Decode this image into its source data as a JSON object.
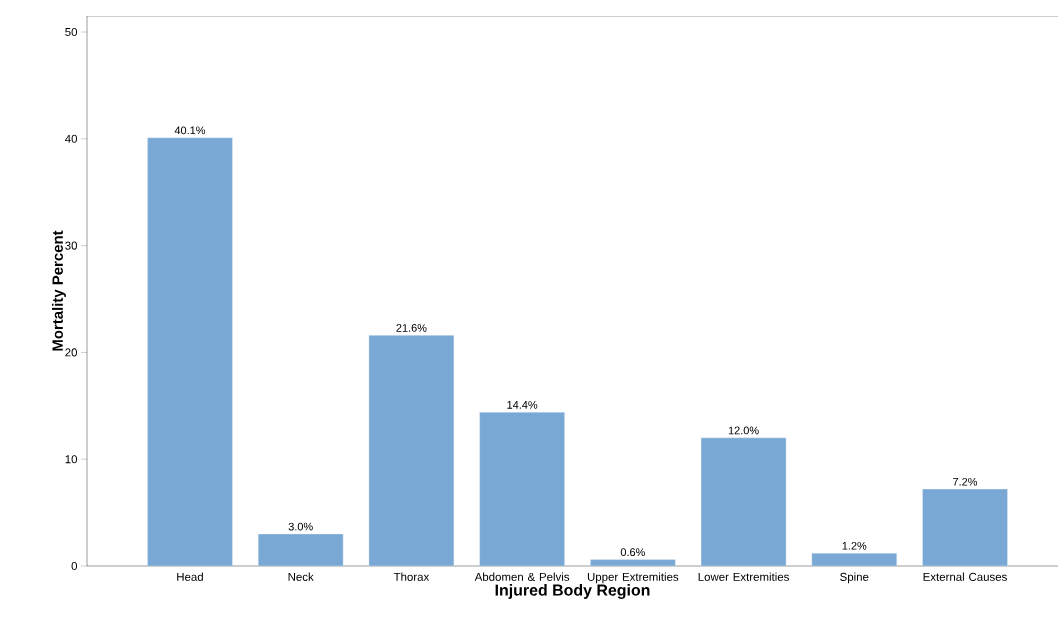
{
  "chart_data": {
    "type": "bar",
    "xlabel": "Injured Body Region",
    "ylabel": "Mortality Percent",
    "categories": [
      "Head",
      "Neck",
      "Thorax",
      "Abdomen & Pelvis",
      "Upper Extremities",
      "Lower Extremities",
      "Spine",
      "External Causes"
    ],
    "values": [
      40.1,
      3.0,
      21.6,
      14.4,
      0.6,
      12.0,
      1.2,
      7.2
    ],
    "value_labels": [
      "40.1%",
      "3.0%",
      "21.6%",
      "14.4%",
      "0.6%",
      "12.0%",
      "1.2%",
      "7.2%"
    ],
    "color": "#7aa8d4",
    "ylim": [
      0,
      51.5
    ],
    "yticks": [
      0,
      10,
      20,
      30,
      40,
      50
    ],
    "grid": false
  }
}
